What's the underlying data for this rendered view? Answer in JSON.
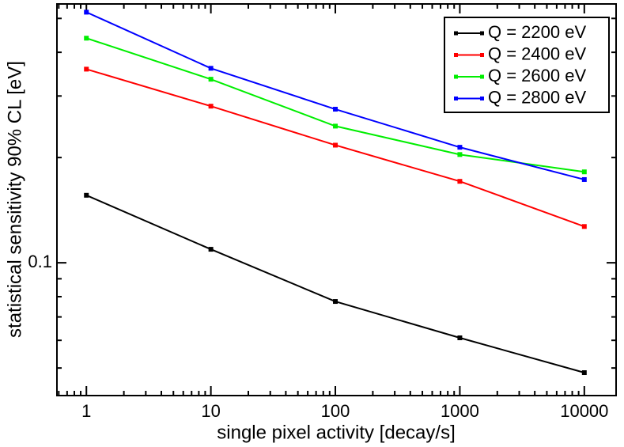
{
  "chart_data": {
    "type": "line",
    "x_label": "single pixel activity [decay/s]",
    "y_label": "statistical sensitivity 90% CL [eV]",
    "x": [
      1,
      10,
      100,
      1000,
      10000
    ],
    "series": [
      {
        "name": "Q = 2200 eV",
        "color": "#000000",
        "values": [
          0.156,
          0.1093,
          0.0775,
          0.061,
          0.0485
        ]
      },
      {
        "name": "Q = 2400 eV",
        "color": "#ff0000",
        "values": [
          0.358,
          0.2805,
          0.217,
          0.171,
          0.127
        ]
      },
      {
        "name": "Q = 2600 eV",
        "color": "#00ee00",
        "values": [
          0.439,
          0.335,
          0.246,
          0.204,
          0.182
        ]
      },
      {
        "name": "Q = 2800 eV",
        "color": "#0000ff",
        "values": [
          0.521,
          0.36,
          0.275,
          0.214,
          0.173
        ]
      }
    ],
    "xlog": true,
    "ylog": true,
    "xlim": [
      0.58,
      18000
    ],
    "ylim": [
      0.0417,
      0.55
    ],
    "xticks": [
      1,
      10,
      100,
      1000,
      10000
    ],
    "xminor": [
      0.6,
      0.7,
      0.8,
      0.9,
      2,
      3,
      4,
      5,
      6,
      7,
      8,
      9,
      20,
      30,
      40,
      50,
      60,
      70,
      80,
      90,
      200,
      300,
      400,
      500,
      600,
      700,
      800,
      900,
      2000,
      3000,
      4000,
      5000,
      6000,
      7000,
      8000,
      9000
    ],
    "yticks": [
      0.1
    ],
    "yminor": [
      0.05,
      0.06,
      0.07,
      0.08,
      0.09,
      0.2,
      0.3,
      0.4,
      0.5
    ],
    "legend": "upper right",
    "grid": false
  }
}
